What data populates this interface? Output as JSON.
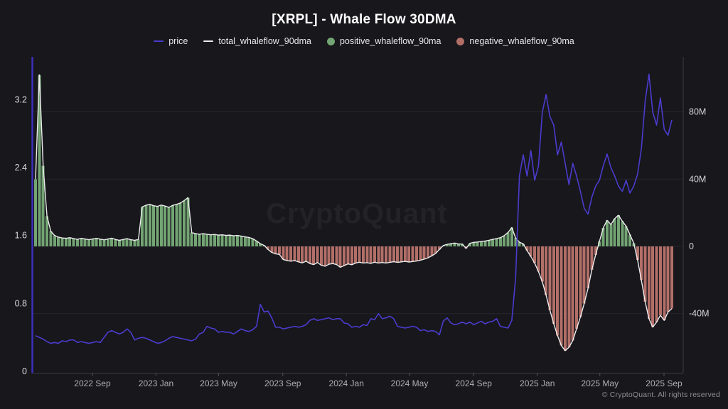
{
  "header": {
    "title": "[XRPL] - Whale Flow 30DMA"
  },
  "legend": {
    "items": [
      {
        "label": "price",
        "swatch": "line",
        "color_key": "price"
      },
      {
        "label": "total_whaleflow_90dma",
        "swatch": "line",
        "color_key": "total"
      },
      {
        "label": "positive_whaleflow_90ma",
        "swatch": "dot",
        "color_key": "positive"
      },
      {
        "label": "negative_whaleflow_90ma",
        "swatch": "dot",
        "color_key": "negative"
      }
    ]
  },
  "watermark": "CryptoQuant",
  "footer": {
    "copyright": "© CryptoQuant. All rights reserved"
  },
  "chart_data": {
    "type": "mixed-bar-line",
    "title": "[XRPL] - Whale Flow 30DMA",
    "x_start_date": "2022-05-15",
    "x_end_date": "2025-09-16",
    "point_interval_days": 7.31,
    "x_ticks": [
      {
        "label": "2022 Sep",
        "day": 109
      },
      {
        "label": "2023 Jan",
        "day": 231
      },
      {
        "label": "2023 May",
        "day": 351
      },
      {
        "label": "2023 Sep",
        "day": 474
      },
      {
        "label": "2024 Jan",
        "day": 596
      },
      {
        "label": "2024 May",
        "day": 717
      },
      {
        "label": "2024 Sep",
        "day": 840
      },
      {
        "label": "2025 Jan",
        "day": 962
      },
      {
        "label": "2025 May",
        "day": 1082
      },
      {
        "label": "2025 Sep",
        "day": 1205
      }
    ],
    "left_axis": {
      "title": "price (USD)",
      "range": [
        0,
        3.7
      ],
      "ticks": [
        {
          "label": "0",
          "value": 0
        },
        {
          "label": "0.8",
          "value": 0.8
        },
        {
          "label": "1.6",
          "value": 1.6
        },
        {
          "label": "2.4",
          "value": 2.4
        },
        {
          "label": "3.2",
          "value": 3.2
        }
      ]
    },
    "right_axis": {
      "title": "whale flow (USD)",
      "range": [
        -75,
        111
      ],
      "ticks": [
        {
          "label": "-40M",
          "value": -40
        },
        {
          "label": "0",
          "value": 0
        },
        {
          "label": "40M",
          "value": 40
        },
        {
          "label": "80M",
          "value": 80
        }
      ]
    },
    "grid": "horizontal-right-axis-ticks",
    "legend_position": "top-center",
    "series": [
      {
        "name": "price",
        "type": "line",
        "axis": "left",
        "values": [
          0.42,
          0.4,
          0.38,
          0.35,
          0.33,
          0.34,
          0.33,
          0.36,
          0.35,
          0.37,
          0.37,
          0.34,
          0.35,
          0.34,
          0.33,
          0.34,
          0.35,
          0.34,
          0.4,
          0.46,
          0.48,
          0.46,
          0.44,
          0.46,
          0.5,
          0.46,
          0.37,
          0.39,
          0.4,
          0.39,
          0.37,
          0.35,
          0.33,
          0.34,
          0.36,
          0.39,
          0.41,
          0.4,
          0.39,
          0.38,
          0.37,
          0.36,
          0.38,
          0.44,
          0.46,
          0.53,
          0.51,
          0.5,
          0.46,
          0.47,
          0.46,
          0.46,
          0.44,
          0.47,
          0.5,
          0.48,
          0.47,
          0.49,
          0.53,
          0.79,
          0.7,
          0.71,
          0.63,
          0.52,
          0.52,
          0.5,
          0.51,
          0.52,
          0.53,
          0.52,
          0.53,
          0.55,
          0.6,
          0.62,
          0.6,
          0.61,
          0.62,
          0.63,
          0.61,
          0.62,
          0.62,
          0.57,
          0.56,
          0.52,
          0.53,
          0.52,
          0.55,
          0.54,
          0.62,
          0.61,
          0.68,
          0.62,
          0.63,
          0.65,
          0.62,
          0.53,
          0.52,
          0.51,
          0.52,
          0.53,
          0.52,
          0.48,
          0.49,
          0.47,
          0.48,
          0.47,
          0.43,
          0.59,
          0.63,
          0.57,
          0.55,
          0.56,
          0.58,
          0.56,
          0.58,
          0.55,
          0.57,
          0.59,
          0.56,
          0.58,
          0.59,
          0.62,
          0.53,
          0.52,
          0.51,
          0.6,
          1.1,
          2.3,
          2.55,
          2.3,
          2.6,
          2.25,
          2.42,
          3.05,
          3.26,
          3.0,
          2.9,
          2.55,
          2.7,
          2.45,
          2.2,
          2.45,
          2.3,
          2.12,
          1.92,
          1.85,
          2.05,
          2.18,
          2.25,
          2.42,
          2.56,
          2.4,
          2.3,
          2.18,
          2.12,
          2.25,
          2.1,
          2.18,
          2.32,
          2.62,
          3.18,
          3.5,
          3.05,
          2.9,
          3.22,
          2.85,
          2.78,
          2.96
        ]
      },
      {
        "name": "total_whaleflow_90dma",
        "type": "line",
        "axis": "right",
        "unit": "M",
        "values": [
          40,
          102,
          48,
          18,
          9,
          6.5,
          5.5,
          5,
          4.8,
          5.2,
          4.6,
          4.2,
          4.8,
          4.4,
          4.0,
          4.4,
          4.8,
          4.3,
          3.9,
          4.4,
          4.9,
          4.1,
          3.6,
          4.1,
          4.6,
          4.0,
          3.6,
          4.1,
          23.5,
          24.5,
          25.0,
          24.2,
          23.8,
          24.6,
          24.0,
          23.2,
          24.4,
          25.0,
          25.8,
          27.2,
          29.0,
          8.2,
          7.6,
          7.2,
          7.6,
          7.2,
          6.9,
          7.1,
          6.7,
          6.9,
          6.5,
          6.7,
          6.3,
          6.5,
          6.1,
          5.7,
          5.3,
          4.6,
          3.2,
          1.6,
          0.6,
          -1.8,
          -3.6,
          -4.4,
          -4.8,
          -7.8,
          -8.4,
          -8.8,
          -8.4,
          -9.2,
          -9.8,
          -8.8,
          -10.2,
          -10.8,
          -9.6,
          -11.2,
          -11.8,
          -10.6,
          -10.2,
          -10.8,
          -12.4,
          -11.4,
          -10.4,
          -10.9,
          -9.9,
          -9.4,
          -9.9,
          -9.7,
          -10.1,
          -9.4,
          -9.9,
          -9.6,
          -9.9,
          -9.5,
          -9.1,
          -9.5,
          -9.2,
          -8.9,
          -9.3,
          -9.0,
          -8.7,
          -8.2,
          -7.6,
          -6.8,
          -5.6,
          -4.2,
          -1.8,
          0.5,
          1.2,
          1.6,
          2.0,
          1.4,
          1.4,
          -1.2,
          1.8,
          2.4,
          2.6,
          2.9,
          3.2,
          3.6,
          4.2,
          4.6,
          5.2,
          6.4,
          8.2,
          11.2,
          5.0,
          2.5,
          1.5,
          -2.5,
          -6,
          -10,
          -15,
          -21,
          -29,
          -38,
          -46,
          -53,
          -59,
          -62,
          -60,
          -56,
          -49,
          -42,
          -34,
          -25,
          -14,
          -5,
          3,
          11,
          15.5,
          13,
          16.5,
          18.5,
          15,
          12,
          7,
          2,
          -8,
          -20,
          -33,
          -43,
          -48,
          -45,
          -41,
          -44,
          -39,
          -37
        ]
      },
      {
        "name": "positive_whaleflow_90ma",
        "type": "bar",
        "axis": "right",
        "values_ref": "total_whaleflow_90dma",
        "filter": "positive-values"
      },
      {
        "name": "negative_whaleflow_90ma",
        "type": "bar",
        "axis": "right",
        "values_ref": "total_whaleflow_90dma",
        "filter": "negative-values"
      }
    ],
    "colors": {
      "background": "#17171c",
      "price": "#4b3ccd",
      "total": "#ededee",
      "positive": "#73a473",
      "negative": "#b26f68",
      "grid": "#26262c",
      "axis_line": "#3b3b43",
      "tick_mark": "#55555c",
      "price_axis_line": "#3d31c0",
      "tick_text": "#d7d7db",
      "x_tick_text": "#aeaeb4",
      "title_text": "#ffffff",
      "legend_text": "#e8e8ea",
      "copyright_text": "#8e8e94",
      "watermark": "rgba(255,255,255,0.05)"
    }
  }
}
